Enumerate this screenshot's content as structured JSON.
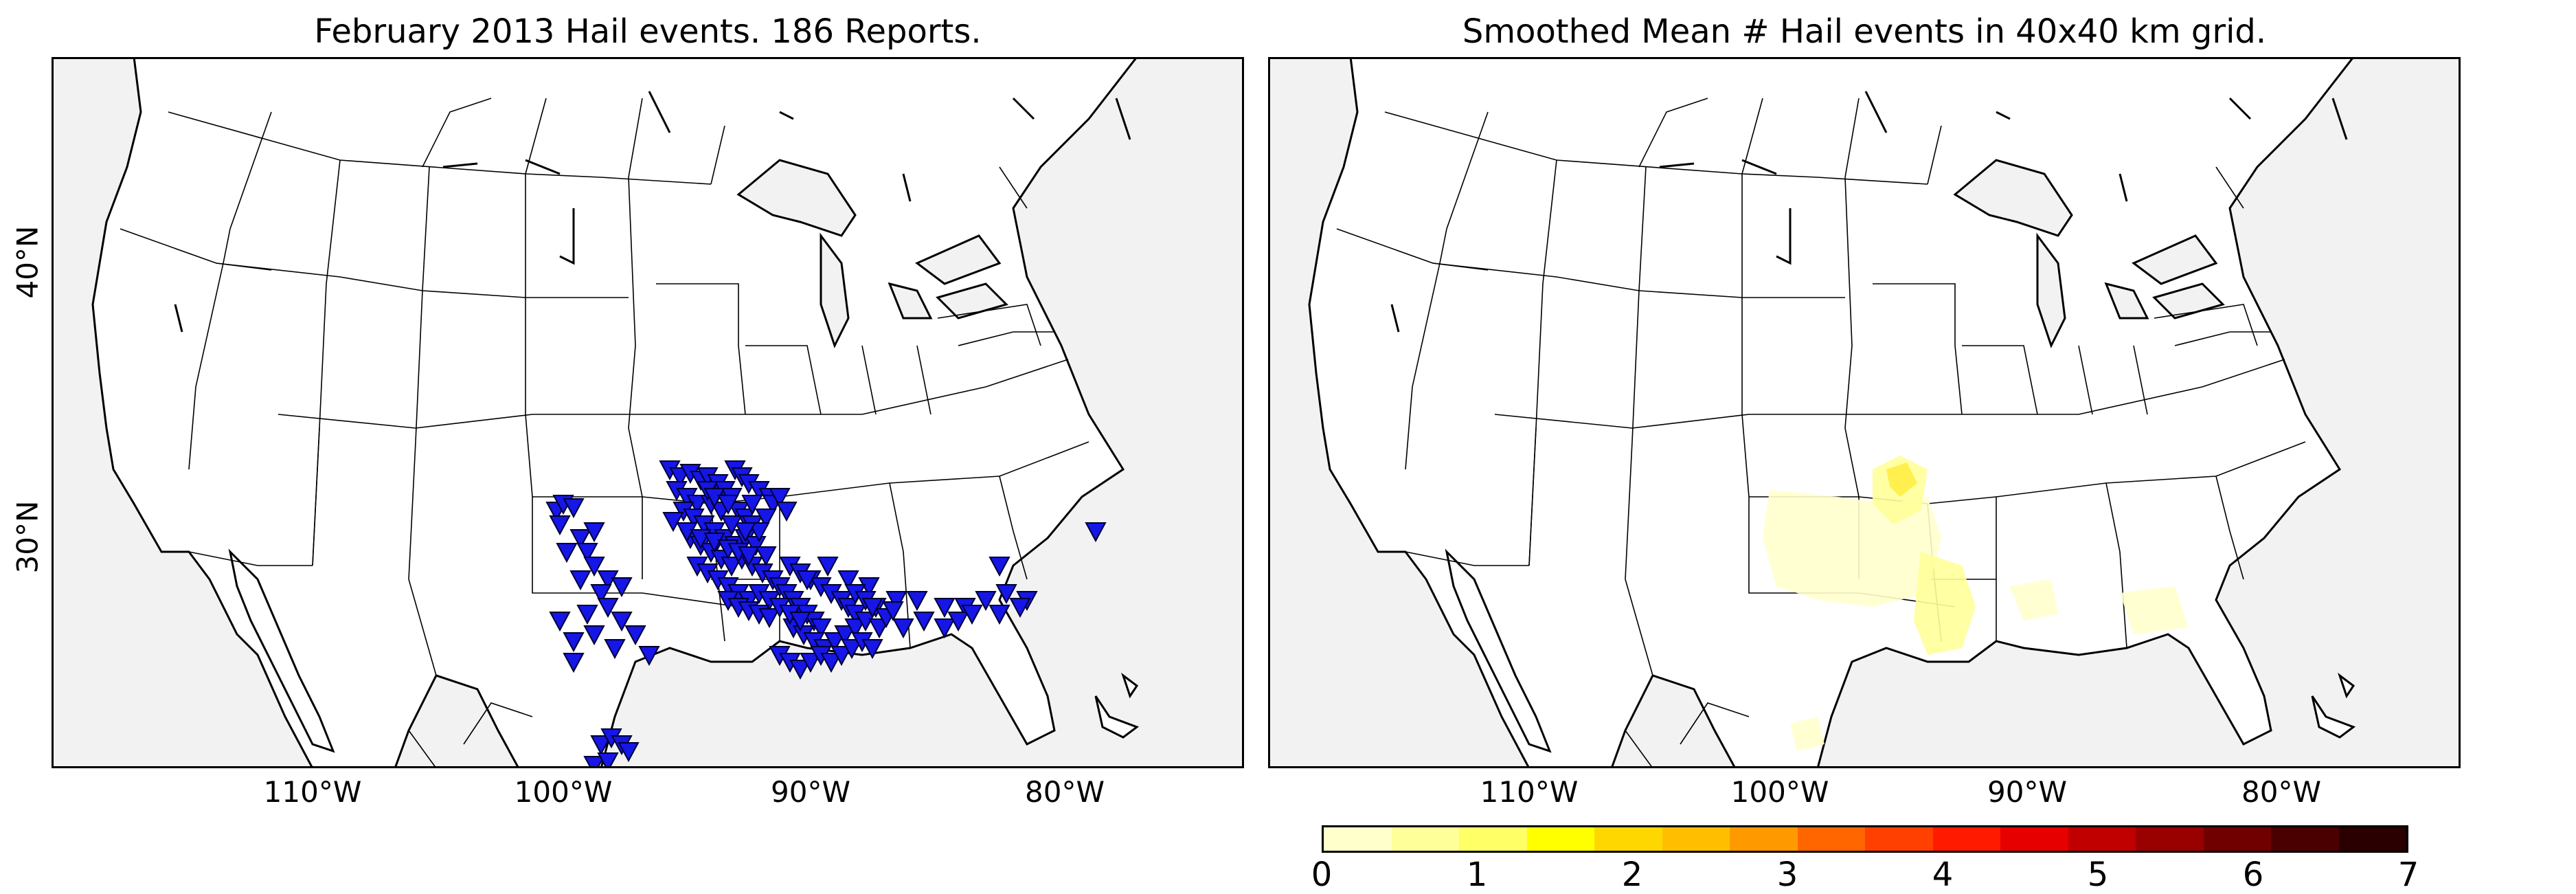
{
  "left_panel": {
    "title": "February 2013 Hail events. 186 Reports.",
    "lat_labels": [
      "40°N",
      "30°N"
    ],
    "lon_labels": [
      "110°W",
      "100°W",
      "90°W",
      "80°W"
    ]
  },
  "right_panel": {
    "title": "Smoothed Mean # Hail events in 40x40 km grid.",
    "lon_labels": [
      "110°W",
      "100°W",
      "90°W",
      "80°W"
    ]
  },
  "colorbar": {
    "ticks": [
      "0",
      "1",
      "2",
      "3",
      "4",
      "5",
      "6",
      "7"
    ],
    "colors": [
      "#ffffcc",
      "#ffff99",
      "#ffff66",
      "#ffff00",
      "#ffd700",
      "#ffbf00",
      "#ff9900",
      "#ff6600",
      "#ff4000",
      "#ff1a00",
      "#e60000",
      "#c00000",
      "#990000",
      "#700000",
      "#4a0000",
      "#2a0000"
    ]
  },
  "colors": {
    "marker": "#1616e6",
    "ocean": "#f2f2f2",
    "land": "#ffffff",
    "heat_light": "#ffffcc",
    "heat_mid": "#ffff88",
    "heat_high": "#ffee44"
  },
  "icons": [
    "triangle-down-marker"
  ]
}
